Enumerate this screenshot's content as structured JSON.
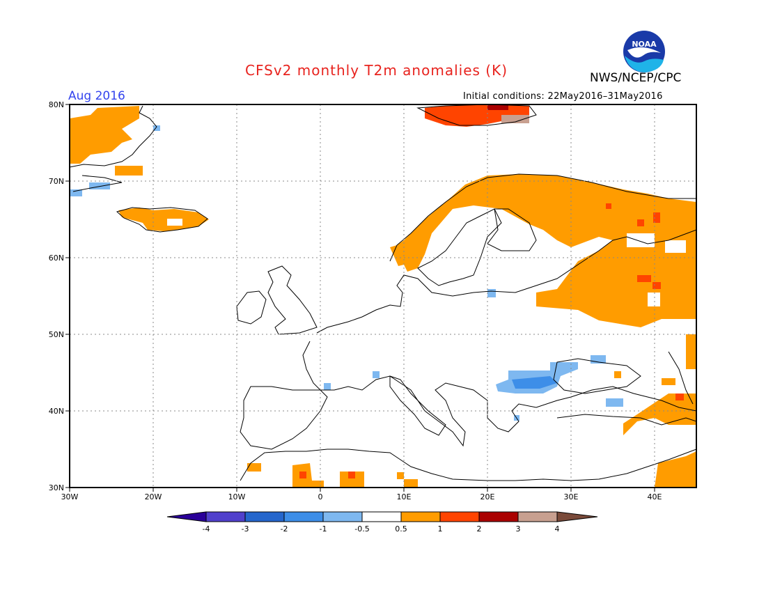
{
  "header": {
    "title": "CFSv2 monthly T2m anomalies (K)",
    "agency": "NWS/NCEP/CPC",
    "period": "Aug 2016",
    "initial_conditions": "Initial conditions: 22May2016–31May2016",
    "logo": "noaa-logo"
  },
  "map": {
    "lat_labels": [
      "80N",
      "70N",
      "60N",
      "50N",
      "40N",
      "30N"
    ],
    "lon_labels": [
      "30W",
      "20W",
      "10W",
      "0",
      "10E",
      "20E",
      "30E",
      "40E"
    ],
    "grid": "dotted"
  },
  "colorbar": {
    "labels": [
      "-4",
      "-3",
      "-2",
      "-1",
      "-0.5",
      "0.5",
      "1",
      "2",
      "3",
      "4"
    ],
    "colors": [
      "#2a0099",
      "#5040cc",
      "#2566cc",
      "#3d8ee8",
      "#7eb8f0",
      "#ffffff",
      "#ff9c00",
      "#ff4400",
      "#aa0000",
      "#c8a090",
      "#7a4a3a"
    ]
  }
}
